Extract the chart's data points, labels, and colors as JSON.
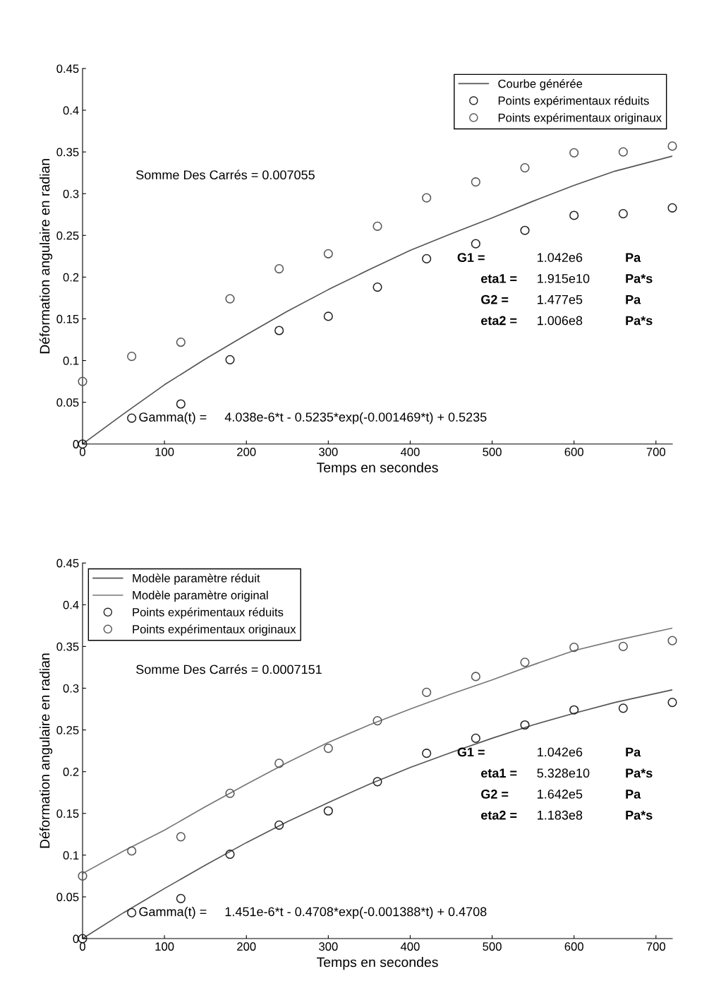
{
  "chart_data": [
    {
      "type": "scatter",
      "xlabel": "Temps en secondes",
      "ylabel": "Déformation angulaire en radian",
      "xlim": [
        0,
        720
      ],
      "ylim": [
        0,
        0.45
      ],
      "xticks": [
        0,
        100,
        200,
        300,
        400,
        500,
        600,
        700
      ],
      "yticks": [
        0,
        0.05,
        0.1,
        0.15,
        0.2,
        0.25,
        0.3,
        0.35,
        0.4,
        0.45
      ],
      "legend": "top right",
      "grid": false,
      "series": [
        {
          "name": "Courbe générée",
          "type": "line",
          "color": "#555555",
          "line_style": "solid",
          "marker": "none",
          "x": [
            0,
            50,
            100,
            150,
            200,
            250,
            300,
            350,
            400,
            450,
            500,
            550,
            600,
            650,
            720
          ],
          "values": [
            0,
            0.036,
            0.071,
            0.102,
            0.131,
            0.159,
            0.185,
            0.209,
            0.232,
            0.252,
            0.271,
            0.291,
            0.31,
            0.327,
            0.345
          ]
        },
        {
          "name": "Points expérimentaux réduits",
          "color": "#222222",
          "marker": "circle",
          "x": [
            0,
            60,
            120,
            180,
            240,
            300,
            360,
            420,
            480,
            540,
            600,
            660,
            720
          ],
          "values": [
            0,
            0.031,
            0.048,
            0.101,
            0.136,
            0.153,
            0.188,
            0.222,
            0.24,
            0.256,
            0.274,
            0.276,
            0.283
          ]
        },
        {
          "name": "Points expérimentaux originaux",
          "color": "#555555",
          "marker": "circle",
          "x": [
            0,
            60,
            120,
            180,
            240,
            300,
            360,
            420,
            480,
            540,
            600,
            660,
            720
          ],
          "values": [
            0.075,
            0.105,
            0.122,
            0.174,
            0.21,
            0.228,
            0.261,
            0.295,
            0.314,
            0.331,
            0.349,
            0.35,
            0.357
          ]
        }
      ],
      "annotations": [
        "Somme Des Carrés = 0.007055",
        "G1 =",
        "1.042e6",
        "Pa",
        "eta1 =",
        "1.915e10",
        "Pa*s",
        "G2 =",
        "1.477e5",
        "Pa",
        "eta2 =",
        "1.006e8",
        "Pa*s",
        "Gamma(t) =     4.038e-6*t - 0.5235*exp(-0.001469*t) + 0.5235"
      ]
    },
    {
      "type": "scatter",
      "xlabel": "Temps en secondes",
      "ylabel": "Déformation angulaire en radian",
      "xlim": [
        0,
        720
      ],
      "ylim": [
        0,
        0.45
      ],
      "xticks": [
        0,
        100,
        200,
        300,
        400,
        500,
        600,
        700
      ],
      "yticks": [
        0,
        0.05,
        0.1,
        0.15,
        0.2,
        0.25,
        0.3,
        0.35,
        0.4,
        0.45
      ],
      "legend": "top left",
      "grid": false,
      "series": [
        {
          "name": "Modèle paramètre réduit",
          "type": "line",
          "color": "#555555",
          "line_style": "solid",
          "marker": "none",
          "x": [
            0,
            50,
            100,
            150,
            200,
            250,
            300,
            350,
            400,
            450,
            500,
            550,
            600,
            650,
            720
          ],
          "values": [
            0,
            0.031,
            0.06,
            0.088,
            0.115,
            0.14,
            0.163,
            0.185,
            0.205,
            0.223,
            0.24,
            0.256,
            0.27,
            0.283,
            0.298
          ]
        },
        {
          "name": "Modèle paramètre original",
          "type": "line",
          "color": "#777777",
          "line_style": "solid",
          "marker": "none",
          "x": [
            0,
            50,
            100,
            150,
            200,
            250,
            300,
            350,
            400,
            450,
            500,
            550,
            600,
            650,
            720
          ],
          "values": [
            0.078,
            0.105,
            0.13,
            0.158,
            0.185,
            0.211,
            0.235,
            0.256,
            0.275,
            0.293,
            0.31,
            0.328,
            0.345,
            0.357,
            0.372
          ]
        },
        {
          "name": "Points expérimentaux réduits",
          "color": "#222222",
          "marker": "circle",
          "x": [
            0,
            60,
            120,
            180,
            240,
            300,
            360,
            420,
            480,
            540,
            600,
            660,
            720
          ],
          "values": [
            0,
            0.031,
            0.048,
            0.101,
            0.136,
            0.153,
            0.188,
            0.222,
            0.24,
            0.256,
            0.274,
            0.276,
            0.283
          ]
        },
        {
          "name": "Points expérimentaux originaux",
          "color": "#555555",
          "marker": "circle",
          "x": [
            0,
            60,
            120,
            180,
            240,
            300,
            360,
            420,
            480,
            540,
            600,
            660,
            720
          ],
          "values": [
            0.075,
            0.105,
            0.122,
            0.174,
            0.21,
            0.228,
            0.261,
            0.295,
            0.314,
            0.331,
            0.349,
            0.35,
            0.357
          ]
        }
      ],
      "annotations": [
        "Somme Des Carrés = 0.0007151",
        "G1 =",
        "1.042e6",
        "Pa",
        "eta1 =",
        "5.328e10",
        "Pa*s",
        "G2 =",
        "1.642e5",
        "Pa",
        "eta2 =",
        "1.183e8",
        "Pa*s",
        "Gamma(t) =     1.451e-6*t - 0.4708*exp(-0.001388*t) + 0.4708"
      ]
    }
  ]
}
